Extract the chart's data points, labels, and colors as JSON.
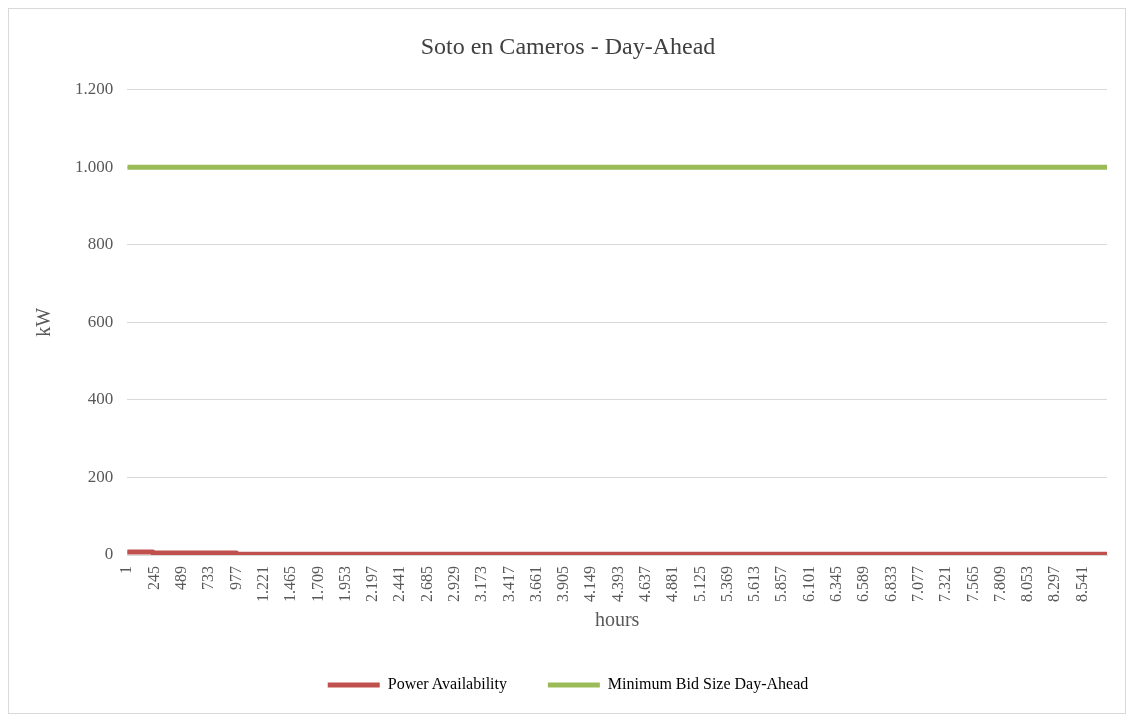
{
  "chart_data": {
    "type": "line",
    "title": "Soto en Cameros - Day-Ahead",
    "xlabel": "hours",
    "ylabel": "kW",
    "xlim": [
      1,
      8760
    ],
    "xticks": [
      1,
      245,
      489,
      733,
      977,
      {
        "value": 1221,
        "label": "1.221"
      },
      {
        "value": 1465,
        "label": "1.465"
      },
      {
        "value": 1709,
        "label": "1.709"
      },
      {
        "value": 1953,
        "label": "1.953"
      },
      {
        "value": 2197,
        "label": "2.197"
      },
      {
        "value": 2441,
        "label": "2.441"
      },
      {
        "value": 2685,
        "label": "2.685"
      },
      {
        "value": 2929,
        "label": "2.929"
      },
      {
        "value": 3173,
        "label": "3.173"
      },
      {
        "value": 3417,
        "label": "3.417"
      },
      {
        "value": 3661,
        "label": "3.661"
      },
      {
        "value": 3905,
        "label": "3.905"
      },
      {
        "value": 4149,
        "label": "4.149"
      },
      {
        "value": 4393,
        "label": "4.393"
      },
      {
        "value": 4637,
        "label": "4.637"
      },
      {
        "value": 4881,
        "label": "4.881"
      },
      {
        "value": 5125,
        "label": "5.125"
      },
      {
        "value": 5369,
        "label": "5.369"
      },
      {
        "value": 5613,
        "label": "5.613"
      },
      {
        "value": 5857,
        "label": "5.857"
      },
      {
        "value": 6101,
        "label": "6.101"
      },
      {
        "value": 6345,
        "label": "6.345"
      },
      {
        "value": 6589,
        "label": "6.589"
      },
      {
        "value": 6833,
        "label": "6.833"
      },
      {
        "value": 7077,
        "label": "7.077"
      },
      {
        "value": 7321,
        "label": "7.321"
      },
      {
        "value": 7565,
        "label": "7.565"
      },
      {
        "value": 7809,
        "label": "7.809"
      },
      {
        "value": 8053,
        "label": "8.053"
      },
      {
        "value": 8297,
        "label": "8.297"
      },
      {
        "value": 8541,
        "label": "8.541"
      }
    ],
    "ylim": [
      0,
      1200
    ],
    "yticks": [
      0,
      200,
      400,
      600,
      800,
      {
        "value": 1000,
        "label": "1.000"
      },
      {
        "value": 1200,
        "label": "1.200"
      }
    ],
    "series": [
      {
        "name": "Power Availability",
        "type": "step",
        "color": "#c0504d",
        "x": [
          1,
          230,
          977,
          2441,
          8760
        ],
        "values": [
          12,
          8,
          5,
          2,
          2
        ]
      },
      {
        "name": "Minimum Bid Size Day-Ahead",
        "type": "line",
        "color": "#9bbb59",
        "x": [
          1,
          8760
        ],
        "values": [
          1000,
          1000
        ]
      }
    ],
    "grid": "y",
    "legend": "bottom",
    "marker": "none",
    "line_style": "solid"
  }
}
